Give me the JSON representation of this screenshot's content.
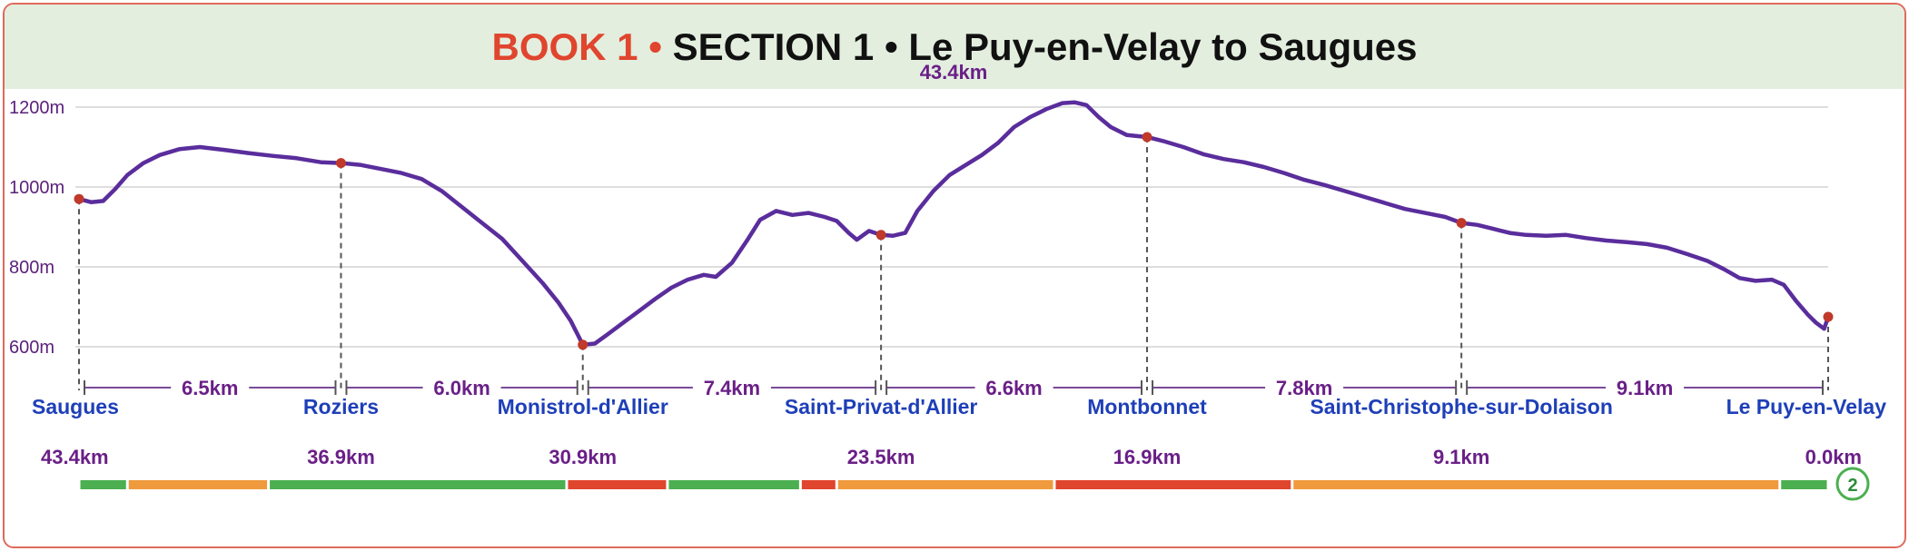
{
  "title": {
    "book": "BOOK 1",
    "bullet": "•",
    "rest": "SECTION 1 • Le Puy-en-Velay to Saugues"
  },
  "total_distance": "43.4km",
  "badge": "2",
  "colors": {
    "profile": "#5a2d9c",
    "point": "#c0392b",
    "axis_text": "#5a1f7a",
    "distance_text": "#6a1f87",
    "town_text": "#1e3fb8",
    "easy": "#4caf50",
    "moderate": "#ef9a3d",
    "hard": "#e0452d"
  },
  "chart_data": {
    "type": "line",
    "title": "",
    "xlabel": "",
    "ylabel": "",
    "y_ticks": [
      "600m",
      "800m",
      "1000m",
      "1200m"
    ],
    "ylim": [
      550,
      1250
    ],
    "xlim": [
      43.4,
      0.0
    ],
    "grid": true,
    "profile": [
      [
        43.4,
        970
      ],
      [
        43.1,
        962
      ],
      [
        42.8,
        965
      ],
      [
        42.5,
        995
      ],
      [
        42.2,
        1030
      ],
      [
        41.8,
        1060
      ],
      [
        41.4,
        1080
      ],
      [
        40.9,
        1095
      ],
      [
        40.4,
        1100
      ],
      [
        39.8,
        1093
      ],
      [
        39.2,
        1085
      ],
      [
        38.6,
        1078
      ],
      [
        38.0,
        1072
      ],
      [
        37.4,
        1062
      ],
      [
        36.9,
        1060
      ],
      [
        36.4,
        1055
      ],
      [
        35.9,
        1045
      ],
      [
        35.4,
        1035
      ],
      [
        34.9,
        1020
      ],
      [
        34.4,
        990
      ],
      [
        33.9,
        950
      ],
      [
        33.4,
        910
      ],
      [
        32.9,
        870
      ],
      [
        32.4,
        815
      ],
      [
        31.9,
        760
      ],
      [
        31.5,
        710
      ],
      [
        31.2,
        665
      ],
      [
        31.0,
        625
      ],
      [
        30.9,
        605
      ],
      [
        30.6,
        608
      ],
      [
        30.3,
        630
      ],
      [
        29.9,
        660
      ],
      [
        29.5,
        690
      ],
      [
        29.1,
        720
      ],
      [
        28.7,
        748
      ],
      [
        28.3,
        768
      ],
      [
        27.9,
        780
      ],
      [
        27.6,
        775
      ],
      [
        27.2,
        810
      ],
      [
        26.8,
        870
      ],
      [
        26.5,
        918
      ],
      [
        26.1,
        940
      ],
      [
        25.7,
        930
      ],
      [
        25.3,
        935
      ],
      [
        24.9,
        925
      ],
      [
        24.6,
        915
      ],
      [
        24.3,
        885
      ],
      [
        24.1,
        868
      ],
      [
        23.8,
        890
      ],
      [
        23.5,
        880
      ],
      [
        23.2,
        878
      ],
      [
        22.9,
        885
      ],
      [
        22.6,
        940
      ],
      [
        22.2,
        990
      ],
      [
        21.8,
        1030
      ],
      [
        21.4,
        1055
      ],
      [
        21.0,
        1080
      ],
      [
        20.6,
        1110
      ],
      [
        20.2,
        1150
      ],
      [
        19.8,
        1175
      ],
      [
        19.4,
        1195
      ],
      [
        19.0,
        1210
      ],
      [
        18.7,
        1212
      ],
      [
        18.4,
        1205
      ],
      [
        18.1,
        1175
      ],
      [
        17.8,
        1150
      ],
      [
        17.4,
        1130
      ],
      [
        16.9,
        1125
      ],
      [
        16.5,
        1115
      ],
      [
        16.0,
        1100
      ],
      [
        15.5,
        1082
      ],
      [
        15.0,
        1070
      ],
      [
        14.5,
        1062
      ],
      [
        14.0,
        1050
      ],
      [
        13.5,
        1035
      ],
      [
        13.0,
        1018
      ],
      [
        12.5,
        1005
      ],
      [
        12.0,
        990
      ],
      [
        11.5,
        975
      ],
      [
        11.0,
        960
      ],
      [
        10.5,
        945
      ],
      [
        10.0,
        935
      ],
      [
        9.5,
        925
      ],
      [
        9.1,
        910
      ],
      [
        8.7,
        905
      ],
      [
        8.3,
        895
      ],
      [
        7.9,
        885
      ],
      [
        7.5,
        880
      ],
      [
        7.0,
        878
      ],
      [
        6.5,
        880
      ],
      [
        6.0,
        872
      ],
      [
        5.5,
        866
      ],
      [
        5.0,
        862
      ],
      [
        4.5,
        857
      ],
      [
        4.0,
        848
      ],
      [
        3.5,
        832
      ],
      [
        3.0,
        815
      ],
      [
        2.6,
        795
      ],
      [
        2.2,
        772
      ],
      [
        1.8,
        765
      ],
      [
        1.4,
        768
      ],
      [
        1.1,
        755
      ],
      [
        0.8,
        715
      ],
      [
        0.5,
        680
      ],
      [
        0.3,
        660
      ],
      [
        0.1,
        645
      ],
      [
        0.0,
        675
      ]
    ],
    "waypoints": [
      {
        "name": "Saugues",
        "km": 43.4,
        "km_label": "43.4km",
        "elev": 970
      },
      {
        "name": "Roziers",
        "km": 36.9,
        "km_label": "36.9km",
        "elev": 1060
      },
      {
        "name": "Monistrol-d'Allier",
        "km": 30.9,
        "km_label": "30.9km",
        "elev": 605
      },
      {
        "name": "Saint-Privat-d'Allier",
        "km": 23.5,
        "km_label": "23.5km",
        "elev": 880
      },
      {
        "name": "Montbonnet",
        "km": 16.9,
        "km_label": "16.9km",
        "elev": 1125
      },
      {
        "name": "Saint-Christophe-sur-Dolaison",
        "km": 9.1,
        "km_label": "9.1km",
        "elev": 910
      },
      {
        "name": "Le Puy-en-Velay",
        "km": 0.0,
        "km_label": "0.0km",
        "elev": 675
      }
    ],
    "segments": [
      "6.5km",
      "6.0km",
      "7.4km",
      "6.6km",
      "7.8km",
      "9.1km"
    ],
    "difficulty": [
      {
        "from": 43.4,
        "to": 42.2,
        "level": "easy"
      },
      {
        "from": 42.2,
        "to": 38.7,
        "level": "moderate"
      },
      {
        "from": 38.7,
        "to": 31.3,
        "level": "easy"
      },
      {
        "from": 31.3,
        "to": 28.8,
        "level": "hard"
      },
      {
        "from": 28.8,
        "to": 25.5,
        "level": "easy"
      },
      {
        "from": 25.5,
        "to": 24.6,
        "level": "hard"
      },
      {
        "from": 24.6,
        "to": 19.2,
        "level": "moderate"
      },
      {
        "from": 19.2,
        "to": 13.3,
        "level": "hard"
      },
      {
        "from": 13.3,
        "to": 1.2,
        "level": "moderate"
      },
      {
        "from": 1.2,
        "to": 0.0,
        "level": "easy"
      }
    ]
  }
}
